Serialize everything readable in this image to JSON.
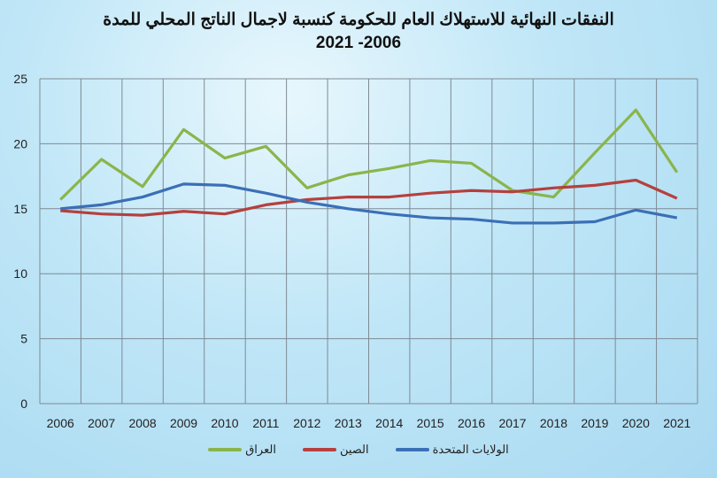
{
  "chart_data": {
    "type": "line",
    "title": "النفقات النهائية للاستهلاك العام للحكومة كنسبة لاجمال الناتج المحلي للمدة",
    "subtitle": "2021 -2006",
    "categories": [
      "2006",
      "2007",
      "2008",
      "2009",
      "2010",
      "2011",
      "2012",
      "2013",
      "2014",
      "2015",
      "2016",
      "2017",
      "2018",
      "2019",
      "2020",
      "2021"
    ],
    "ylim": [
      0,
      25
    ],
    "yticks": [
      "0",
      "5",
      "10",
      "15",
      "20",
      "25"
    ],
    "grid": true,
    "legend_placement": "bottom",
    "series": [
      {
        "name": "الولايات المتحدة",
        "color": "#3b6fb6",
        "values": [
          15.0,
          15.3,
          15.9,
          16.9,
          16.8,
          16.2,
          15.5,
          15.0,
          14.6,
          14.3,
          14.2,
          13.9,
          13.9,
          14.0,
          14.9,
          14.3
        ]
      },
      {
        "name": "الصين",
        "color": "#b5403e",
        "values": [
          14.85,
          14.6,
          14.5,
          14.8,
          14.6,
          15.3,
          15.7,
          15.9,
          15.9,
          16.2,
          16.4,
          16.3,
          16.6,
          16.8,
          17.2,
          15.8
        ]
      },
      {
        "name": "العراق",
        "color": "#8ab54a",
        "values": [
          15.7,
          18.8,
          16.7,
          21.1,
          18.9,
          19.8,
          16.6,
          17.6,
          18.1,
          18.7,
          18.5,
          16.4,
          15.9,
          19.3,
          22.6,
          17.8
        ]
      }
    ]
  }
}
